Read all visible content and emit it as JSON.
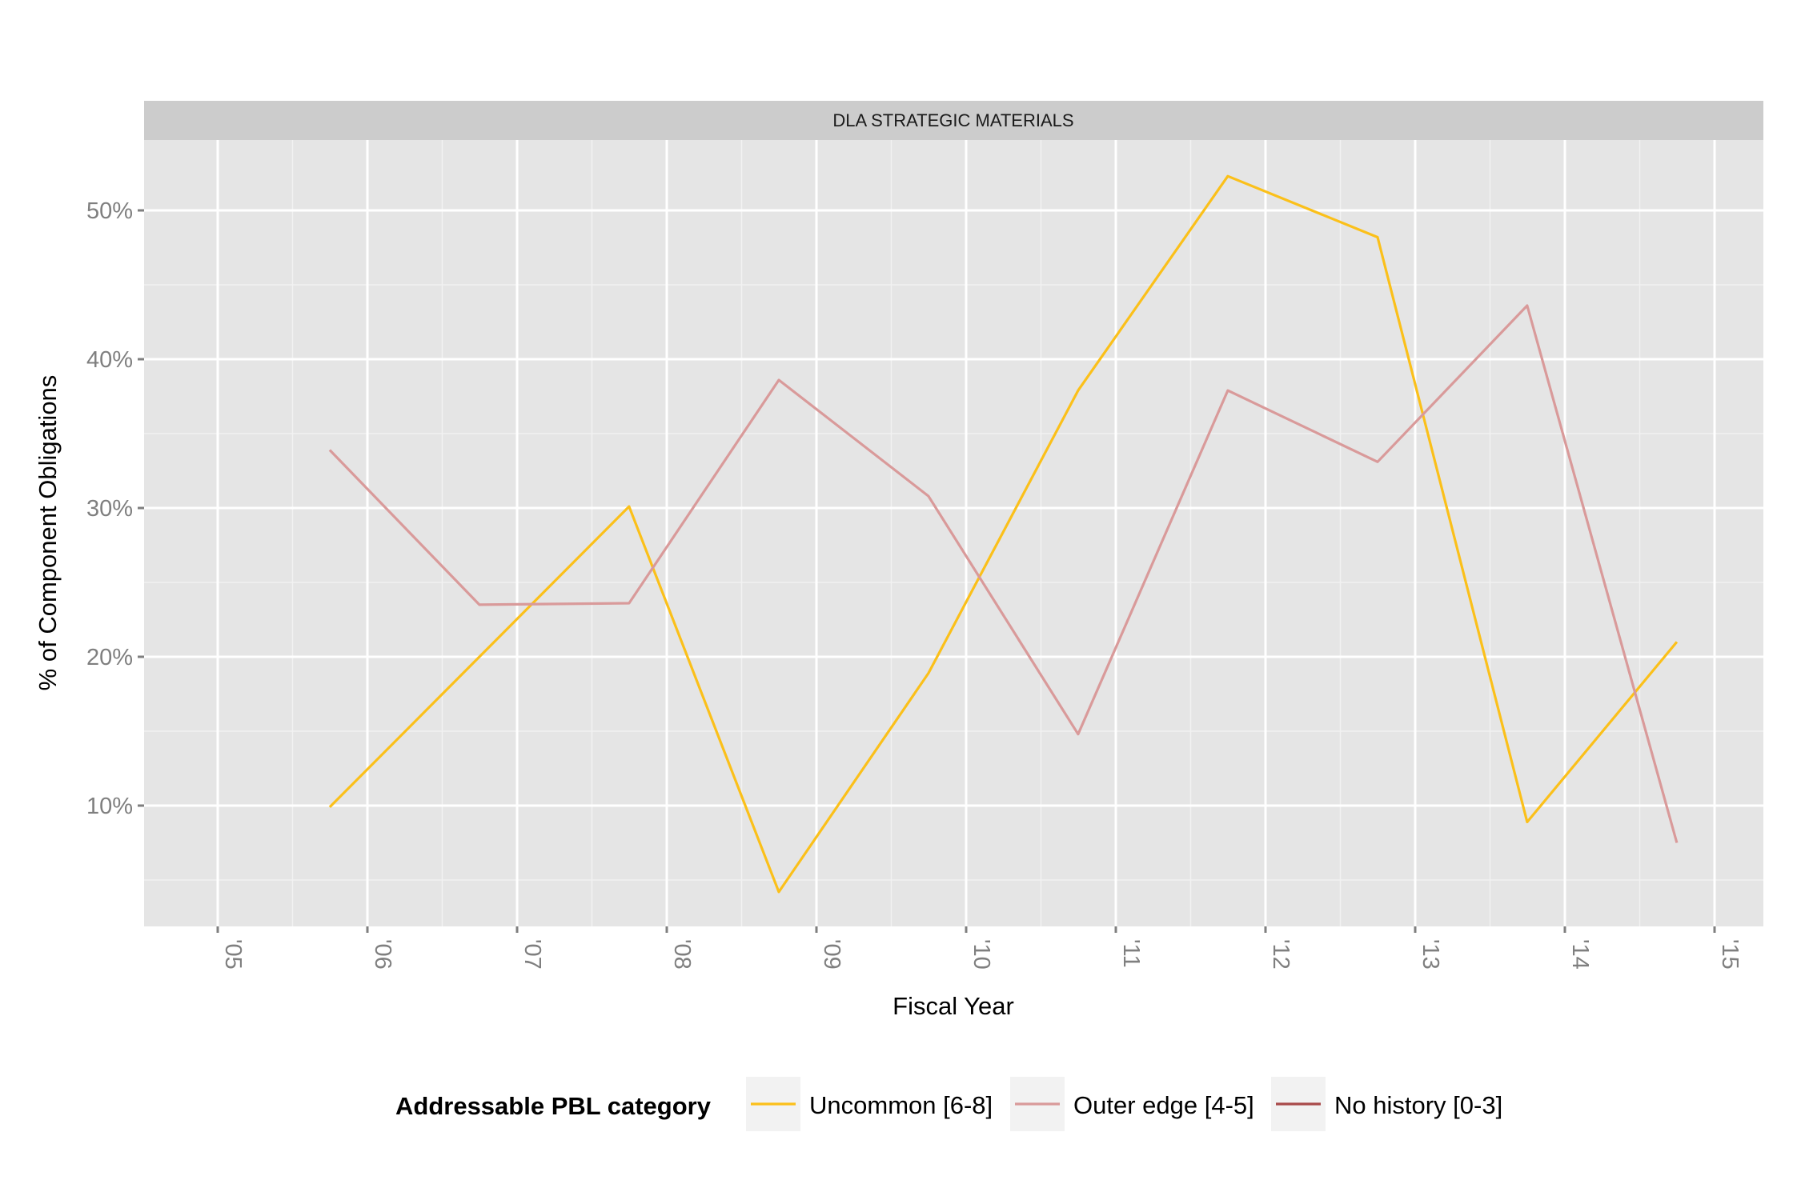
{
  "chart_data": {
    "type": "line",
    "facet_title": "DLA STRATEGIC MATERIALS",
    "xlabel": "Fiscal Year",
    "ylabel": "% of Component Obligations",
    "x_ticks": [
      "'05",
      "'06",
      "'07",
      "'08",
      "'09",
      "'10",
      "'11",
      "'12",
      "'13",
      "'14",
      "'15"
    ],
    "y_ticks": [
      "10%",
      "20%",
      "30%",
      "40%",
      "50%"
    ],
    "legend_title": "Addressable PBL category",
    "legend_position": "bottom",
    "grid": true,
    "series": [
      {
        "name": "Uncommon [6-8]",
        "color": "#fbc01a",
        "x": [
          "2005-10-01",
          "2006-10-01",
          "2007-10-01",
          "2008-10-01",
          "2009-10-01",
          "2010-10-01",
          "2011-10-01",
          "2012-10-01",
          "2013-10-01",
          "2014-10-01"
        ],
        "values": [
          9.9,
          20.0,
          30.1,
          4.2,
          18.9,
          37.9,
          52.3,
          48.2,
          8.9,
          21.0
        ]
      },
      {
        "name": "Outer edge [4-5]",
        "color": "#d99a9a",
        "x": [
          "2005-10-01",
          "2006-10-01",
          "2007-10-01",
          "2008-10-01",
          "2009-10-01",
          "2010-10-01",
          "2011-10-01",
          "2012-10-01",
          "2013-10-01",
          "2014-10-01"
        ],
        "values": [
          33.9,
          23.5,
          23.6,
          38.6,
          30.8,
          14.8,
          37.9,
          33.1,
          43.6,
          7.5
        ]
      },
      {
        "name": "No history [0-3]",
        "color": "#a94a4a",
        "x": [],
        "values": []
      }
    ]
  }
}
